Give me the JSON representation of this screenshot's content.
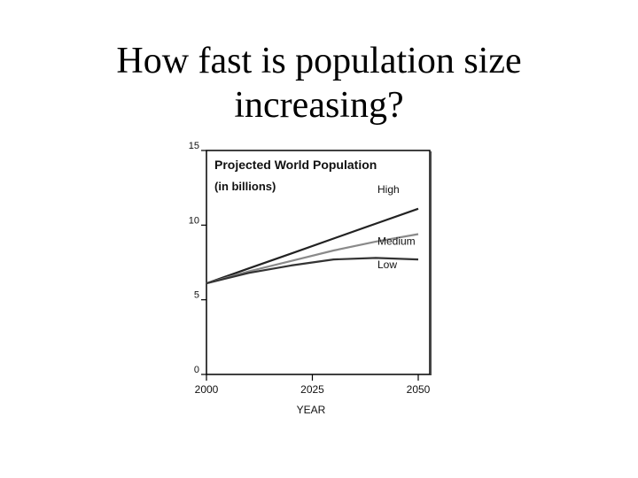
{
  "slide": {
    "title_line1": "How fast is population size",
    "title_line2": "increasing?"
  },
  "chart_data": {
    "type": "line",
    "title": "Projected World Population",
    "subtitle": "(in billions)",
    "xlabel": "YEAR",
    "ylabel": "",
    "xlim": [
      2000,
      2050
    ],
    "ylim": [
      0,
      15
    ],
    "x_ticks": [
      2000,
      2025,
      2050
    ],
    "y_ticks": [
      0,
      5,
      10,
      15
    ],
    "grid": false,
    "series": [
      {
        "name": "High",
        "color": "#222222",
        "x": [
          2000,
          2010,
          2020,
          2030,
          2040,
          2050
        ],
        "values": [
          6.1,
          7.1,
          8.1,
          9.1,
          10.1,
          11.1
        ]
      },
      {
        "name": "Medium",
        "color": "#8a8a8a",
        "x": [
          2000,
          2010,
          2020,
          2030,
          2040,
          2050
        ],
        "values": [
          6.1,
          6.9,
          7.6,
          8.3,
          8.9,
          9.4
        ]
      },
      {
        "name": "Low",
        "color": "#333333",
        "x": [
          2000,
          2010,
          2020,
          2030,
          2040,
          2050
        ],
        "values": [
          6.1,
          6.8,
          7.3,
          7.7,
          7.8,
          7.7
        ]
      }
    ]
  }
}
